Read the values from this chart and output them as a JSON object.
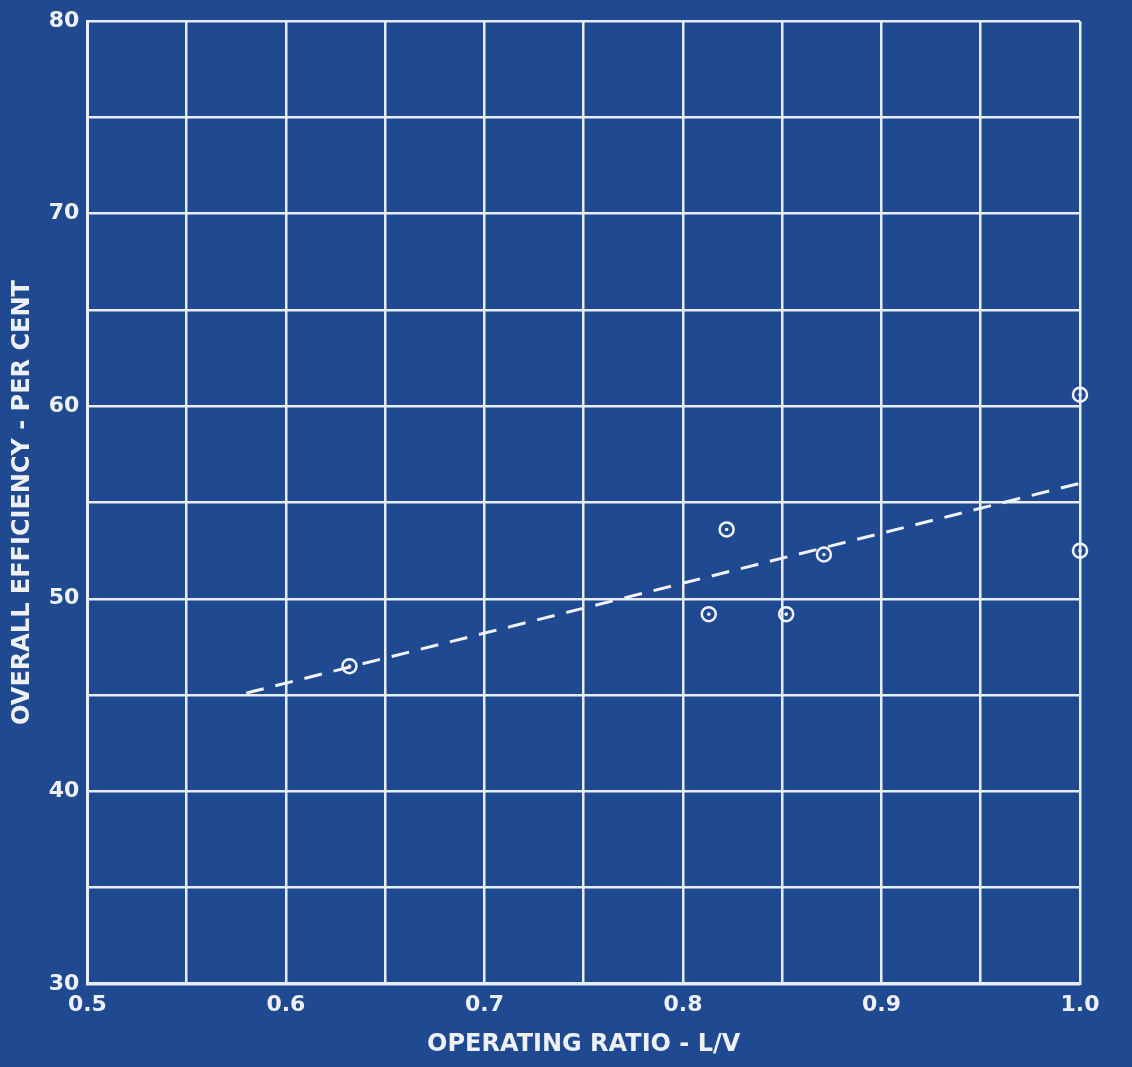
{
  "chart_data": {
    "type": "scatter",
    "xlabel": "OPERATING RATIO - L/V",
    "ylabel": "OVERALL EFFICIENCY - PER CENT",
    "xlim": [
      0.5,
      1.0
    ],
    "ylim": [
      30,
      80
    ],
    "xticks": [
      0.5,
      {
        "value": 0.55,
        "label": null
      },
      0.6,
      {
        "value": 0.65,
        "label": null
      },
      0.7,
      {
        "value": 0.75,
        "label": null
      },
      0.8,
      {
        "value": 0.85,
        "label": null
      },
      0.9,
      {
        "value": 0.95,
        "label": null
      },
      {
        "value": 1.0,
        "label": "1.0"
      }
    ],
    "yticks": [
      30,
      {
        "value": 35,
        "label": null
      },
      40,
      {
        "value": 45,
        "label": null
      },
      50,
      {
        "value": 55,
        "label": null
      },
      60,
      {
        "value": 65,
        "label": null
      },
      70,
      {
        "value": 75,
        "label": null
      },
      80
    ],
    "grid": true,
    "legend": false,
    "series": [
      {
        "type": "scatter",
        "color": "#f2f2f2",
        "marker": "circle",
        "x": [
          0.632,
          0.822,
          0.813,
          0.852,
          0.871,
          1.0,
          1.0
        ],
        "values": [
          46.5,
          53.6,
          49.2,
          49.2,
          52.3,
          60.6,
          52.5
        ]
      },
      {
        "type": "line",
        "color": "#f2f2f2",
        "line_style": "dashed",
        "marker": "none",
        "x": [
          0.58,
          1.0
        ],
        "values": [
          45.1,
          56.0
        ]
      }
    ]
  }
}
